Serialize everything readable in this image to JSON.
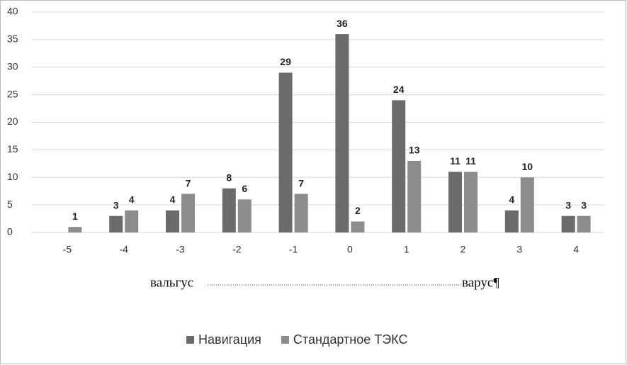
{
  "chart_data": {
    "type": "bar",
    "categories": [
      "-5",
      "-4",
      "-3",
      "-2",
      "-1",
      "0",
      "1",
      "2",
      "3",
      "4"
    ],
    "series": [
      {
        "name": "Навигация",
        "color": "#6b6b6b",
        "values": [
          null,
          3,
          4,
          8,
          29,
          36,
          24,
          11,
          4,
          3
        ]
      },
      {
        "name": "Стандартное ТЭКС",
        "color": "#8c8c8c",
        "values": [
          1,
          4,
          7,
          6,
          7,
          2,
          13,
          11,
          10,
          3
        ]
      }
    ],
    "ylim": [
      0,
      40
    ],
    "yticks": [
      0,
      5,
      10,
      15,
      20,
      25,
      30,
      35,
      40
    ],
    "grid": true,
    "annotations": [
      "вальгус",
      "варус¶"
    ],
    "legend": "bottom"
  }
}
